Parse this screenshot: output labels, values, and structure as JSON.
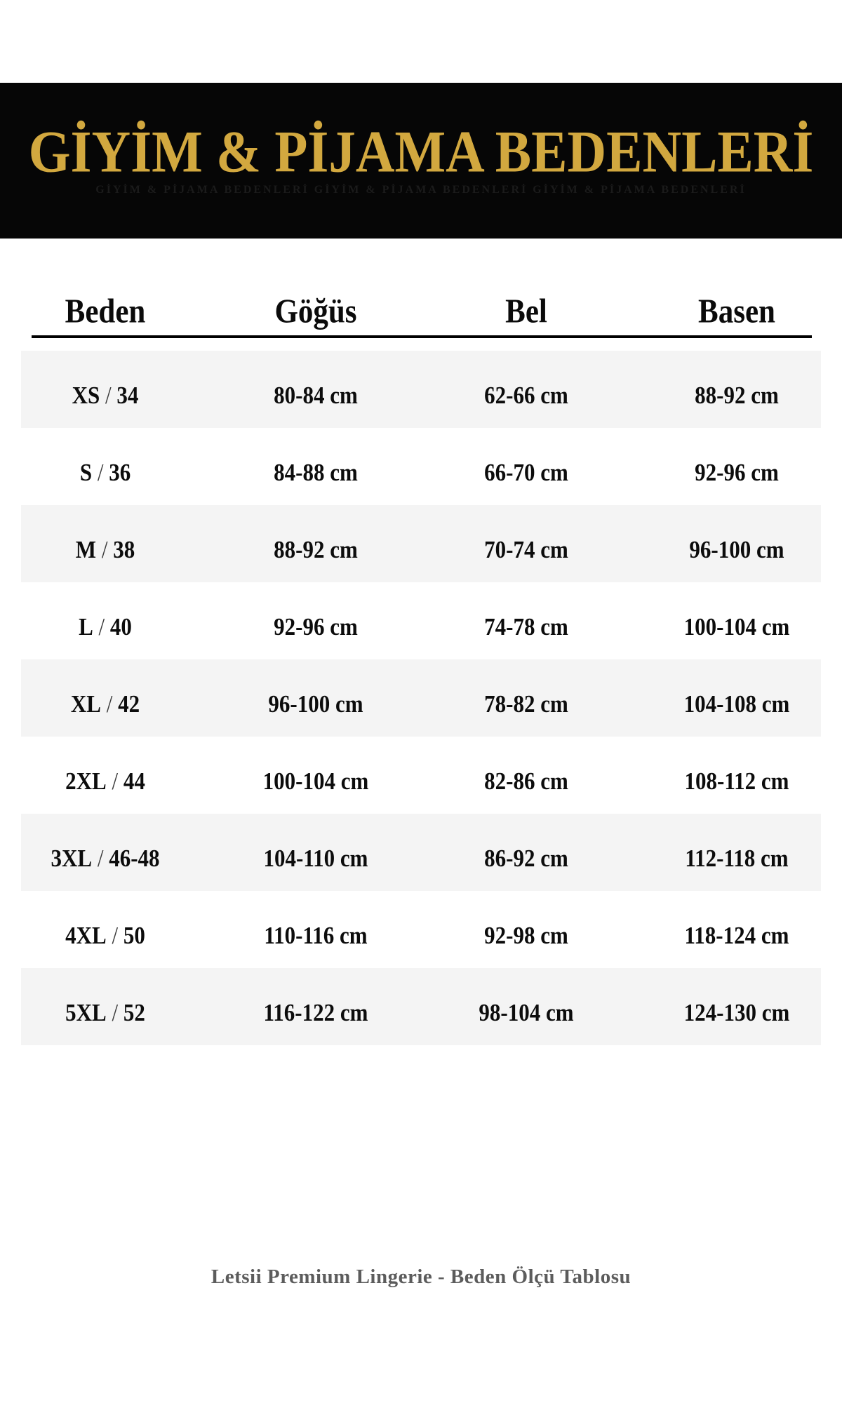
{
  "banner": {
    "title": "GİYİM & PİJAMA BEDENLERİ",
    "ghost_text": "GİYİM & PİJAMA BEDENLERİ   GİYİM & PİJAMA BEDENLERİ   GİYİM & PİJAMA BEDENLERİ",
    "bg_color": "#060606",
    "gold_color": "#D2A83F"
  },
  "table": {
    "columns": [
      "Beden",
      "Göğüs",
      "Bel",
      "Basen"
    ],
    "stripe_color": "#F4F4F4",
    "rows": [
      {
        "size": "XS",
        "size_num": "34",
        "chest": "80-84 cm",
        "waist": "62-66 cm",
        "hip": "88-92 cm"
      },
      {
        "size": "S",
        "size_num": "36",
        "chest": "84-88 cm",
        "waist": "66-70 cm",
        "hip": "92-96 cm"
      },
      {
        "size": "M",
        "size_num": "38",
        "chest": "88-92 cm",
        "waist": "70-74 cm",
        "hip": "96-100 cm"
      },
      {
        "size": "L",
        "size_num": "40",
        "chest": "92-96 cm",
        "waist": "74-78 cm",
        "hip": "100-104 cm"
      },
      {
        "size": "XL",
        "size_num": "42",
        "chest": "96-100 cm",
        "waist": "78-82 cm",
        "hip": "104-108 cm"
      },
      {
        "size": "2XL",
        "size_num": "44",
        "chest": "100-104 cm",
        "waist": "82-86 cm",
        "hip": "108-112 cm"
      },
      {
        "size": "3XL",
        "size_num": "46-48",
        "chest": "104-110 cm",
        "waist": "86-92 cm",
        "hip": "112-118 cm"
      },
      {
        "size": "4XL",
        "size_num": "50",
        "chest": "110-116 cm",
        "waist": "92-98 cm",
        "hip": "118-124 cm"
      },
      {
        "size": "5XL",
        "size_num": "52",
        "chest": "116-122 cm",
        "waist": "98-104 cm",
        "hip": "124-130 cm"
      }
    ]
  },
  "footer": {
    "text": "Letsii Premium Lingerie - Beden Ölçü Tablosu"
  }
}
